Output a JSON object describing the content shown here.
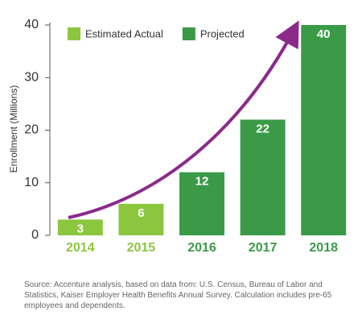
{
  "chart_data": {
    "type": "bar",
    "y_label": "Enrollment (Millions)",
    "categories": [
      "2014",
      "2015",
      "2016",
      "2017",
      "2018"
    ],
    "series": [
      {
        "name": "Estimated Actual",
        "color": "#8cc63f",
        "values": [
          3,
          6,
          null,
          null,
          null
        ]
      },
      {
        "name": "Projected",
        "color": "#3a9a47",
        "values": [
          null,
          null,
          12,
          22,
          40
        ]
      }
    ],
    "ylim": [
      0,
      40
    ],
    "yticks": [
      0,
      10,
      20,
      30,
      40
    ],
    "legend": "top-left",
    "note": "Source:  Accenture analysis, based on data from: U.S. Census, Bureau of Labor and Statistics, Kaiser Employer Health Benefits Annual Survey. Calculation includes pre-65 employees and dependents."
  }
}
